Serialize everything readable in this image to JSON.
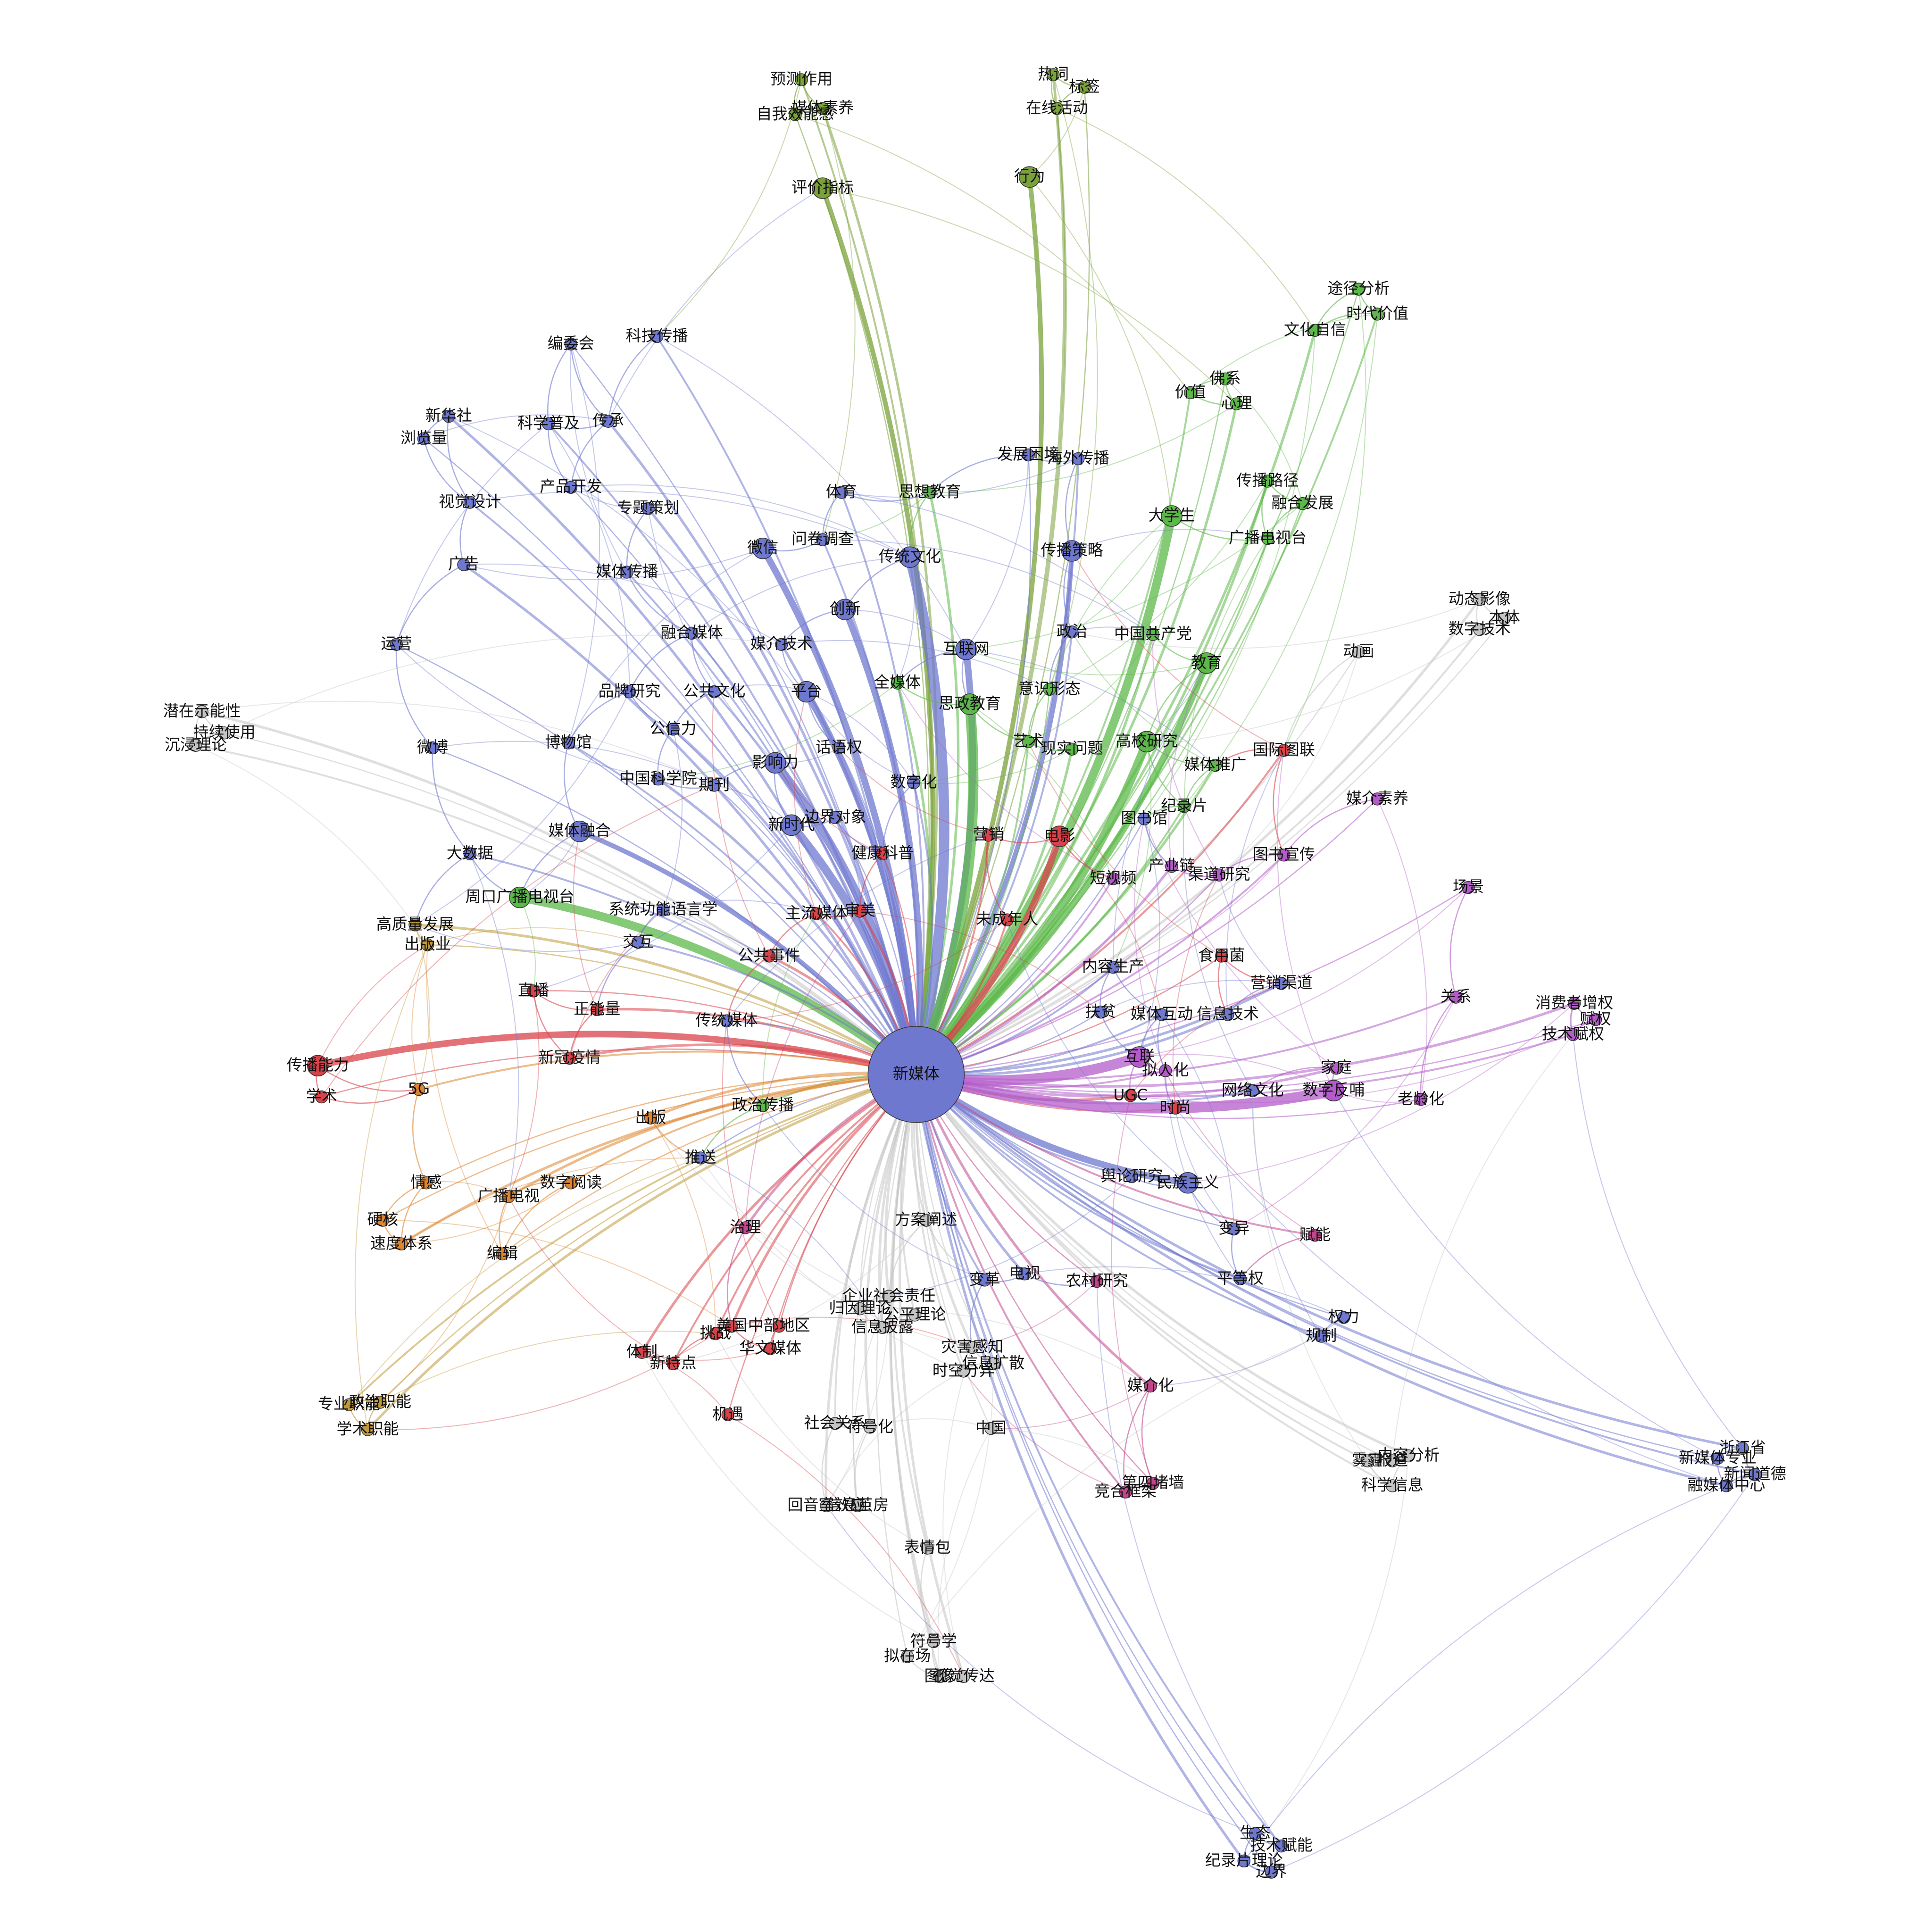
{
  "graph": {
    "groups": [
      {
        "color": "#6f78cf"
      },
      {
        "color": "#5cb849"
      },
      {
        "color": "#7aa13a"
      },
      {
        "color": "#d8434b"
      },
      {
        "color": "#de8530"
      },
      {
        "color": "#b35cc9"
      },
      {
        "color": "#c09a3a"
      },
      {
        "color": "#c4c4c4"
      },
      {
        "color": "#c1478d"
      }
    ],
    "nodes": [
      {
        "label": "新媒体",
        "group": 0
      },
      {
        "label": "预测作用",
        "group": 2
      },
      {
        "label": "媒体素养",
        "group": 2
      },
      {
        "label": "自我效能感",
        "group": 2
      },
      {
        "label": "评价指标",
        "group": 2
      },
      {
        "label": "热词",
        "group": 2
      },
      {
        "label": "标签",
        "group": 2
      },
      {
        "label": "在线活动",
        "group": 2
      },
      {
        "label": "行为",
        "group": 2
      },
      {
        "label": "途径分析",
        "group": 1
      },
      {
        "label": "时代价值",
        "group": 1
      },
      {
        "label": "文化自信",
        "group": 1
      },
      {
        "label": "佛系",
        "group": 1
      },
      {
        "label": "价值",
        "group": 1
      },
      {
        "label": "心理",
        "group": 1
      },
      {
        "label": "编委会",
        "group": 0
      },
      {
        "label": "科技传播",
        "group": 0
      },
      {
        "label": "新华社",
        "group": 0
      },
      {
        "label": "浏览量",
        "group": 0
      },
      {
        "label": "科学普及",
        "group": 0
      },
      {
        "label": "传承",
        "group": 0
      },
      {
        "label": "产品开发",
        "group": 0
      },
      {
        "label": "视觉设计",
        "group": 0
      },
      {
        "label": "专题策划",
        "group": 0
      },
      {
        "label": "发展困境",
        "group": 0
      },
      {
        "label": "海外传播",
        "group": 0
      },
      {
        "label": "传播路径",
        "group": 1
      },
      {
        "label": "融合发展",
        "group": 1
      },
      {
        "label": "体育",
        "group": 0
      },
      {
        "label": "思想教育",
        "group": 1
      },
      {
        "label": "大学生",
        "group": 1
      },
      {
        "label": "广播电视台",
        "group": 1
      },
      {
        "label": "广告",
        "group": 0
      },
      {
        "label": "微信",
        "group": 0
      },
      {
        "label": "问卷调查",
        "group": 0
      },
      {
        "label": "传统文化",
        "group": 0
      },
      {
        "label": "传播策略",
        "group": 0
      },
      {
        "label": "媒体传播",
        "group": 0
      },
      {
        "label": "动态影像",
        "group": 7
      },
      {
        "label": "本体",
        "group": 7
      },
      {
        "label": "数字技术",
        "group": 7
      },
      {
        "label": "创新",
        "group": 0
      },
      {
        "label": "运营",
        "group": 0
      },
      {
        "label": "融合媒体",
        "group": 0
      },
      {
        "label": "媒介技术",
        "group": 0
      },
      {
        "label": "互联网",
        "group": 0
      },
      {
        "label": "政治",
        "group": 0
      },
      {
        "label": "中国共产党",
        "group": 1
      },
      {
        "label": "动画",
        "group": 7
      },
      {
        "label": "教育",
        "group": 1
      },
      {
        "label": "全媒体",
        "group": 1
      },
      {
        "label": "品牌研究",
        "group": 0
      },
      {
        "label": "公共文化",
        "group": 0
      },
      {
        "label": "平台",
        "group": 0
      },
      {
        "label": "意识形态",
        "group": 1
      },
      {
        "label": "思政教育",
        "group": 1
      },
      {
        "label": "潜在示能性",
        "group": 7
      },
      {
        "label": "持续使用",
        "group": 7
      },
      {
        "label": "沉浸理论",
        "group": 7
      },
      {
        "label": "公信力",
        "group": 0
      },
      {
        "label": "微博",
        "group": 0
      },
      {
        "label": "博物馆",
        "group": 0
      },
      {
        "label": "影响力",
        "group": 0
      },
      {
        "label": "话语权",
        "group": 0
      },
      {
        "label": "艺术",
        "group": 1
      },
      {
        "label": "现实问题",
        "group": 1
      },
      {
        "label": "高校研究",
        "group": 1
      },
      {
        "label": "国际图联",
        "group": 3
      },
      {
        "label": "中国科学院",
        "group": 0
      },
      {
        "label": "期刊",
        "group": 0
      },
      {
        "label": "数字化",
        "group": 0
      },
      {
        "label": "媒体推广",
        "group": 1
      },
      {
        "label": "媒介素养",
        "group": 5
      },
      {
        "label": "纪录片",
        "group": 1
      },
      {
        "label": "新时代",
        "group": 0
      },
      {
        "label": "边界对象",
        "group": 0
      },
      {
        "label": "营销",
        "group": 3
      },
      {
        "label": "电影",
        "group": 3
      },
      {
        "label": "图书馆",
        "group": 0
      },
      {
        "label": "大数据",
        "group": 0
      },
      {
        "label": "媒体融合",
        "group": 0
      },
      {
        "label": "健康科普",
        "group": 3
      },
      {
        "label": "图书宣传",
        "group": 5
      },
      {
        "label": "产业链",
        "group": 5
      },
      {
        "label": "渠道研究",
        "group": 5
      },
      {
        "label": "短视频",
        "group": 5
      },
      {
        "label": "周口广播电视台",
        "group": 1
      },
      {
        "label": "系统功能语言学",
        "group": 0
      },
      {
        "label": "主流媒体",
        "group": 3
      },
      {
        "label": "审美",
        "group": 3
      },
      {
        "label": "场景",
        "group": 5
      },
      {
        "label": "未成年人",
        "group": 3
      },
      {
        "label": "高质量发展",
        "group": 6
      },
      {
        "label": "出版业",
        "group": 6
      },
      {
        "label": "交互",
        "group": 0
      },
      {
        "label": "公共事件",
        "group": 3
      },
      {
        "label": "食用菌",
        "group": 3
      },
      {
        "label": "内容生产",
        "group": 0
      },
      {
        "label": "营销渠道",
        "group": 0
      },
      {
        "label": "直播",
        "group": 3
      },
      {
        "label": "关系",
        "group": 5
      },
      {
        "label": "消费者增权",
        "group": 5
      },
      {
        "label": "赋权",
        "group": 5
      },
      {
        "label": "技术赋权",
        "group": 5
      },
      {
        "label": "正能量",
        "group": 3
      },
      {
        "label": "扶贫",
        "group": 0
      },
      {
        "label": "媒体互动",
        "group": 0
      },
      {
        "label": "信息技术",
        "group": 0
      },
      {
        "label": "传统媒体",
        "group": 0
      },
      {
        "label": "传播能力",
        "group": 3
      },
      {
        "label": "新冠疫情",
        "group": 3
      },
      {
        "label": "互联",
        "group": 5
      },
      {
        "label": "拟人化",
        "group": 5
      },
      {
        "label": "家庭",
        "group": 5
      },
      {
        "label": "学术",
        "group": 3
      },
      {
        "label": "5G",
        "group": 4
      },
      {
        "label": "UGC",
        "group": 3
      },
      {
        "label": "时尚",
        "group": 3
      },
      {
        "label": "网络文化",
        "group": 0
      },
      {
        "label": "数字反哺",
        "group": 5
      },
      {
        "label": "老龄化",
        "group": 5
      },
      {
        "label": "政治传播",
        "group": 1
      },
      {
        "label": "出版",
        "group": 4
      },
      {
        "label": "推送",
        "group": 0
      },
      {
        "label": "舆论研究",
        "group": 0
      },
      {
        "label": "民族主义",
        "group": 0
      },
      {
        "label": "情感",
        "group": 4
      },
      {
        "label": "数字阅读",
        "group": 4
      },
      {
        "label": "广播电视",
        "group": 4
      },
      {
        "label": "硬核",
        "group": 4
      },
      {
        "label": "方案阐述",
        "group": 7
      },
      {
        "label": "治理",
        "group": 8
      },
      {
        "label": "变异",
        "group": 0
      },
      {
        "label": "赋能",
        "group": 8
      },
      {
        "label": "速度体系",
        "group": 4
      },
      {
        "label": "编辑",
        "group": 4
      },
      {
        "label": "变革",
        "group": 0
      },
      {
        "label": "电视",
        "group": 0
      },
      {
        "label": "农村研究",
        "group": 8
      },
      {
        "label": "平等权",
        "group": 0
      },
      {
        "label": "企业社会责任",
        "group": 7
      },
      {
        "label": "归因理论",
        "group": 7
      },
      {
        "label": "公平理论",
        "group": 7
      },
      {
        "label": "信息披露",
        "group": 7
      },
      {
        "label": "权力",
        "group": 0
      },
      {
        "label": "规制",
        "group": 0
      },
      {
        "label": "美国",
        "group": 3
      },
      {
        "label": "中部地区",
        "group": 3
      },
      {
        "label": "挑战",
        "group": 3
      },
      {
        "label": "体制",
        "group": 3
      },
      {
        "label": "华文媒体",
        "group": 3
      },
      {
        "label": "新特点",
        "group": 3
      },
      {
        "label": "灾害感知",
        "group": 7
      },
      {
        "label": "信息扩散",
        "group": 7
      },
      {
        "label": "时空分异",
        "group": 7
      },
      {
        "label": "媒介化",
        "group": 8
      },
      {
        "label": "政治职能",
        "group": 6
      },
      {
        "label": "专业职能",
        "group": 6
      },
      {
        "label": "学术职能",
        "group": 6
      },
      {
        "label": "机遇",
        "group": 3
      },
      {
        "label": "社会关系",
        "group": 7
      },
      {
        "label": "符号化",
        "group": 7
      },
      {
        "label": "中国",
        "group": 7
      },
      {
        "label": "雾霾",
        "group": 7
      },
      {
        "label": "内容分析",
        "group": 7
      },
      {
        "label": "报道",
        "group": 7
      },
      {
        "label": "科学信息",
        "group": 7
      },
      {
        "label": "浙江省",
        "group": 0
      },
      {
        "label": "新媒体专业",
        "group": 0
      },
      {
        "label": "新闻道德",
        "group": 0
      },
      {
        "label": "融媒体中心",
        "group": 0
      },
      {
        "label": "第四堵墙",
        "group": 8
      },
      {
        "label": "竞合框架",
        "group": 8
      },
      {
        "label": "回音室效应",
        "group": 7
      },
      {
        "label": "信息茧房",
        "group": 7
      },
      {
        "label": "表情包",
        "group": 7
      },
      {
        "label": "符号学",
        "group": 7
      },
      {
        "label": "拟在场",
        "group": 7
      },
      {
        "label": "图像",
        "group": 7
      },
      {
        "label": "视觉传达",
        "group": 7
      },
      {
        "label": "生态",
        "group": 0
      },
      {
        "label": "技术赋能",
        "group": 0
      },
      {
        "label": "纪录片理论",
        "group": 0
      },
      {
        "label": "边界",
        "group": 0
      }
    ]
  }
}
